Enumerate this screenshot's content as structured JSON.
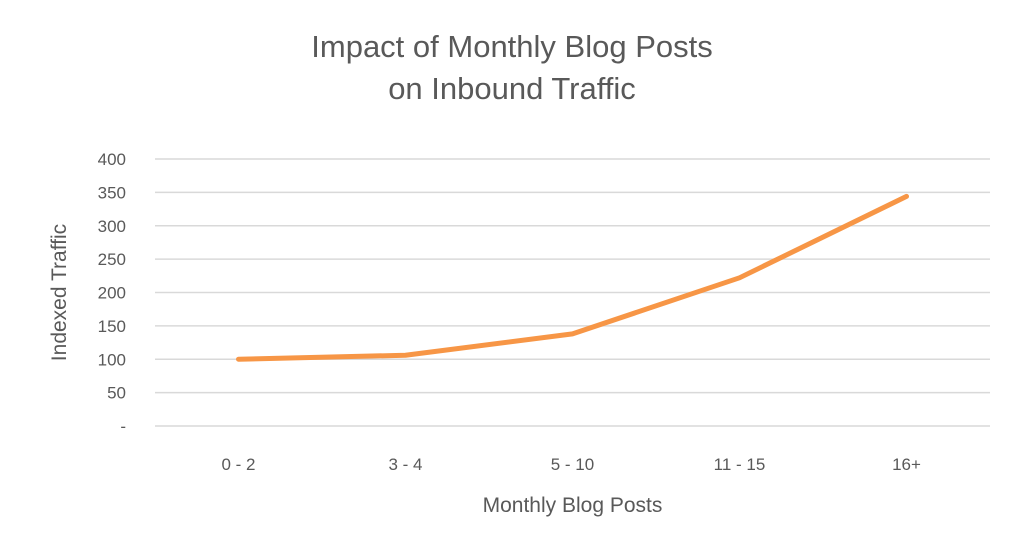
{
  "chart_data": {
    "type": "line",
    "title_line1": "Impact of Monthly Blog Posts",
    "title_line2": "on Inbound Traffic",
    "xlabel": "Monthly Blog Posts",
    "ylabel": "Indexed Traffic",
    "categories": [
      "0 - 2",
      "3 - 4",
      "5 - 10",
      "11 - 15",
      "16+"
    ],
    "series": [
      {
        "values": [
          100,
          106,
          138,
          222,
          344
        ],
        "color": "#F79646"
      }
    ],
    "ylim": [
      0,
      400
    ],
    "yticks": [
      0,
      50,
      100,
      150,
      200,
      250,
      300,
      350,
      400
    ],
    "ytick_labels": [
      "-",
      "50",
      "100",
      "150",
      "200",
      "250",
      "300",
      "350",
      "400"
    ],
    "grid": true,
    "grid_color": "#D9D9D9",
    "legend": "none"
  }
}
